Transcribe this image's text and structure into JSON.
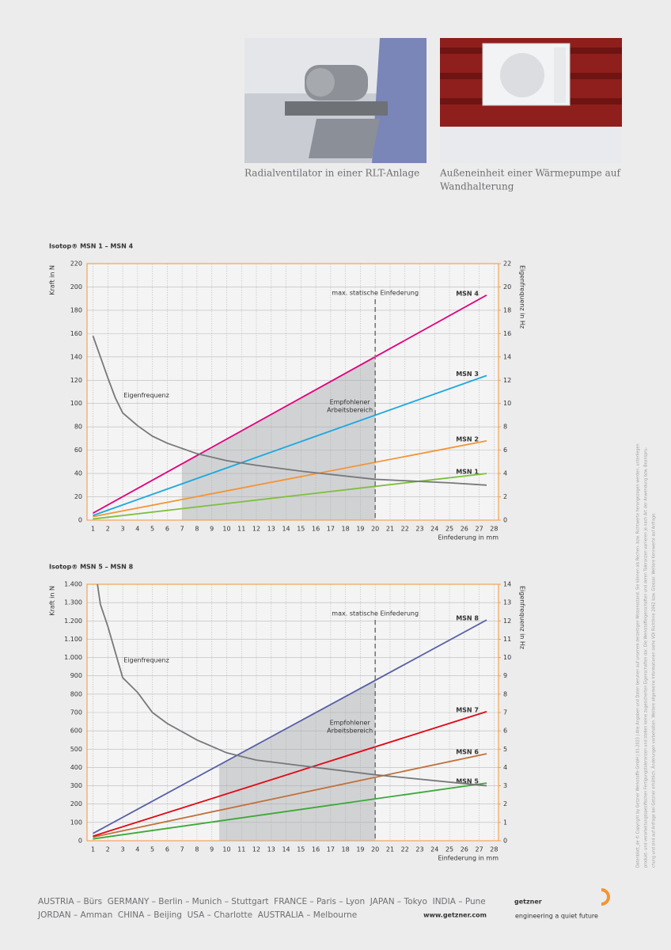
{
  "captions": [
    [
      "Radialventilator in einer RLT-Anlage"
    ],
    [
      "Außeneinheit einer Wärmepumpe auf",
      "Wandhalterung"
    ]
  ],
  "chart_data": [
    {
      "type": "line",
      "title": "Isotop® MSN 1 – MSN 4",
      "ylabel": "Kraft in N",
      "y2label": "Eigenfrequenz in Hz",
      "xlabel": "Einfederung in mm",
      "xlim": [
        0.6,
        28.3
      ],
      "xticks": [
        1,
        2,
        3,
        4,
        5,
        6,
        7,
        8,
        9,
        10,
        11,
        12,
        13,
        14,
        15,
        16,
        17,
        18,
        19,
        20,
        21,
        22,
        23,
        24,
        25,
        26,
        27,
        28
      ],
      "ylim": [
        0,
        220
      ],
      "yticks": [
        0,
        20,
        40,
        60,
        80,
        100,
        120,
        140,
        160,
        180,
        200,
        220
      ],
      "y2lim": [
        0,
        22
      ],
      "y2ticks": [
        0,
        2,
        4,
        6,
        8,
        10,
        12,
        14,
        16,
        18,
        20,
        22
      ],
      "grid": true,
      "vline": {
        "x": 20,
        "label": "max. statische Einfederung"
      },
      "region": {
        "xlim": [
          7,
          20
        ],
        "label": [
          "Empfohlener",
          "Arbeitsbereich"
        ]
      },
      "series": [
        {
          "name": "MSN 1",
          "color": "#7dbf3c",
          "x": [
            1,
            27.5
          ],
          "values": [
            1,
            40
          ]
        },
        {
          "name": "MSN 2",
          "color": "#f39433",
          "x": [
            1,
            27.5
          ],
          "values": [
            3,
            68
          ]
        },
        {
          "name": "MSN 3",
          "color": "#1ba9e0",
          "x": [
            1,
            27.5
          ],
          "values": [
            4,
            124
          ]
        },
        {
          "name": "MSN 4",
          "color": "#e3007d",
          "x": [
            1,
            27.5
          ],
          "values": [
            6,
            193
          ]
        },
        {
          "name": "Eigenfrequenz",
          "color": "#77787b",
          "axis": "y2",
          "x": [
            1,
            1.5,
            2,
            2.5,
            3,
            4,
            5,
            6,
            8,
            10,
            12,
            15,
            20,
            25,
            27.5
          ],
          "values": [
            15.8,
            14,
            12.2,
            10.5,
            9.2,
            8.1,
            7.2,
            6.6,
            5.7,
            5.1,
            4.7,
            4.2,
            3.5,
            3.2,
            3.0
          ]
        }
      ]
    },
    {
      "type": "line",
      "title": "Isotop® MSN 5 – MSN 8",
      "ylabel": "Kraft in N",
      "y2label": "Eigenfrequenz in Hz",
      "xlabel": "Einfederung in mm",
      "xlim": [
        0.6,
        28.3
      ],
      "xticks": [
        1,
        2,
        3,
        4,
        5,
        6,
        7,
        8,
        9,
        10,
        11,
        12,
        13,
        14,
        15,
        16,
        17,
        18,
        19,
        20,
        21,
        22,
        23,
        24,
        25,
        26,
        27,
        28
      ],
      "ylim": [
        0,
        1400
      ],
      "yticks": [
        0,
        100,
        200,
        300,
        400,
        500,
        600,
        700,
        800,
        900,
        {
          "value": 1000,
          "label": "1.000"
        },
        {
          "value": 1100,
          "label": "1.100"
        },
        {
          "value": 1200,
          "label": "1.200"
        },
        {
          "value": 1300,
          "label": "1.300"
        },
        {
          "value": 1400,
          "label": "1.400"
        }
      ],
      "y2lim": [
        0,
        14
      ],
      "y2ticks": [
        0,
        1,
        2,
        3,
        4,
        5,
        6,
        7,
        8,
        9,
        10,
        11,
        12,
        13,
        14
      ],
      "grid": true,
      "vline": {
        "x": 20,
        "label": "max. statische Einfederung"
      },
      "region": {
        "xlim": [
          9.5,
          20
        ],
        "label": [
          "Empfohlener",
          "Arbeitsbereich"
        ]
      },
      "series": [
        {
          "name": "MSN 5",
          "color": "#3aaa35",
          "x": [
            1,
            27.5
          ],
          "values": [
            10,
            315
          ]
        },
        {
          "name": "MSN 6",
          "color": "#c0703a",
          "x": [
            1,
            27.5
          ],
          "values": [
            20,
            475
          ]
        },
        {
          "name": "MSN 7",
          "color": "#e30613",
          "x": [
            1,
            27.5
          ],
          "values": [
            25,
            705
          ]
        },
        {
          "name": "MSN 8",
          "color": "#575ea6",
          "x": [
            1,
            27.5
          ],
          "values": [
            40,
            1205
          ]
        },
        {
          "name": "Eigenfrequenz",
          "color": "#77787b",
          "axis": "y2",
          "x": [
            1.3,
            1.5,
            2,
            3,
            4,
            5,
            6,
            8,
            10,
            12,
            15,
            20,
            25,
            27.5
          ],
          "values": [
            14,
            12.9,
            11.7,
            8.9,
            8.1,
            7.0,
            6.4,
            5.5,
            4.8,
            4.4,
            4.1,
            3.6,
            3.2,
            3.0
          ]
        }
      ]
    }
  ],
  "side_note": [
    "Datenblatt_de © Copyright by Getzner Werkstoffe GmbH | 01-2023 | Alle Angaben und Daten beruhen auf unserem derzeitigen Wissensstand. Sie können als Rechen- bzw. Richtwerte herangezogen werden, unterliegen",
    "produkt- und verarbeitungsspezifischen Fertigungstoleranzen und stellen keine zugesicherten Eigenschaften dar. Die Werkstoffeigenschaften und deren Toleranzen variieren je nach Art der Anwendung bzw. Beanspru-",
    "chung und sind auf Anfrage bei Getzner erhältlich. Änderungen vorbehalten. Weitere allgemeine Informationen siehe VDI Richtlinie 2062 bzw. Glossar. Weitere Kennwerte auf Anfrage."
  ],
  "footer": {
    "locations": [
      "AUSTRIA – Bürs  GERMANY – Berlin – Munich – Stuttgart  FRANCE – Paris – Lyon  JAPAN – Tokyo  INDIA – Pune",
      "JORDAN – Amman  CHINA – Beijing  USA – Charlotte  AUSTRALIA – Melbourne"
    ],
    "url": "www.getzner.com",
    "logo": "getzner",
    "claim": "engineering a quiet future"
  }
}
